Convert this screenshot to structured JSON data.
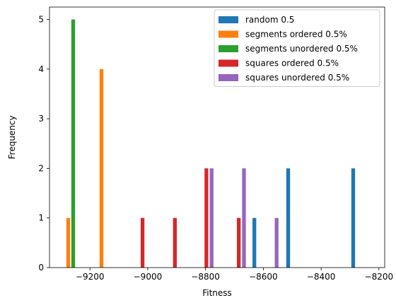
{
  "chart_data": {
    "type": "bar",
    "title": "",
    "xlabel": "Fitness",
    "ylabel": "Frequency",
    "xlim": [
      -9340,
      -8180
    ],
    "ylim": [
      0,
      5.25
    ],
    "x_ticks": [
      -9200,
      -9000,
      -8800,
      -8600,
      -8400,
      -8200
    ],
    "x_tick_labels": [
      "−9200",
      "−9000",
      "−8800",
      "−8600",
      "−8400",
      "−8200"
    ],
    "y_ticks": [
      0,
      1,
      2,
      3,
      4,
      5
    ],
    "y_tick_labels": [
      "0",
      "1",
      "2",
      "3",
      "4",
      "5"
    ],
    "bar_width": 13,
    "grid": false,
    "legend_position": "top-right",
    "series": [
      {
        "name": "random 0.5",
        "color": "#1f77b4",
        "bars": [
          {
            "x": -8631,
            "value": 1
          },
          {
            "x": -8514,
            "value": 2
          },
          {
            "x": -8289,
            "value": 2
          }
        ]
      },
      {
        "name": "segments ordered 0.5%",
        "color": "#ff7f0e",
        "bars": [
          {
            "x": -9275,
            "value": 1
          },
          {
            "x": -9160,
            "value": 4
          }
        ]
      },
      {
        "name": "segments unordered 0.5%",
        "color": "#2ca02c",
        "bars": [
          {
            "x": -9258,
            "value": 5
          }
        ]
      },
      {
        "name": "squares ordered 0.5%",
        "color": "#d62728",
        "bars": [
          {
            "x": -9018,
            "value": 1
          },
          {
            "x": -8906,
            "value": 1
          },
          {
            "x": -8797,
            "value": 2
          },
          {
            "x": -8685,
            "value": 1
          }
        ]
      },
      {
        "name": "squares unordered 0.5%",
        "color": "#9467bd",
        "bars": [
          {
            "x": -8779,
            "value": 2
          },
          {
            "x": -8667,
            "value": 2
          },
          {
            "x": -8554,
            "value": 1
          }
        ]
      }
    ]
  }
}
